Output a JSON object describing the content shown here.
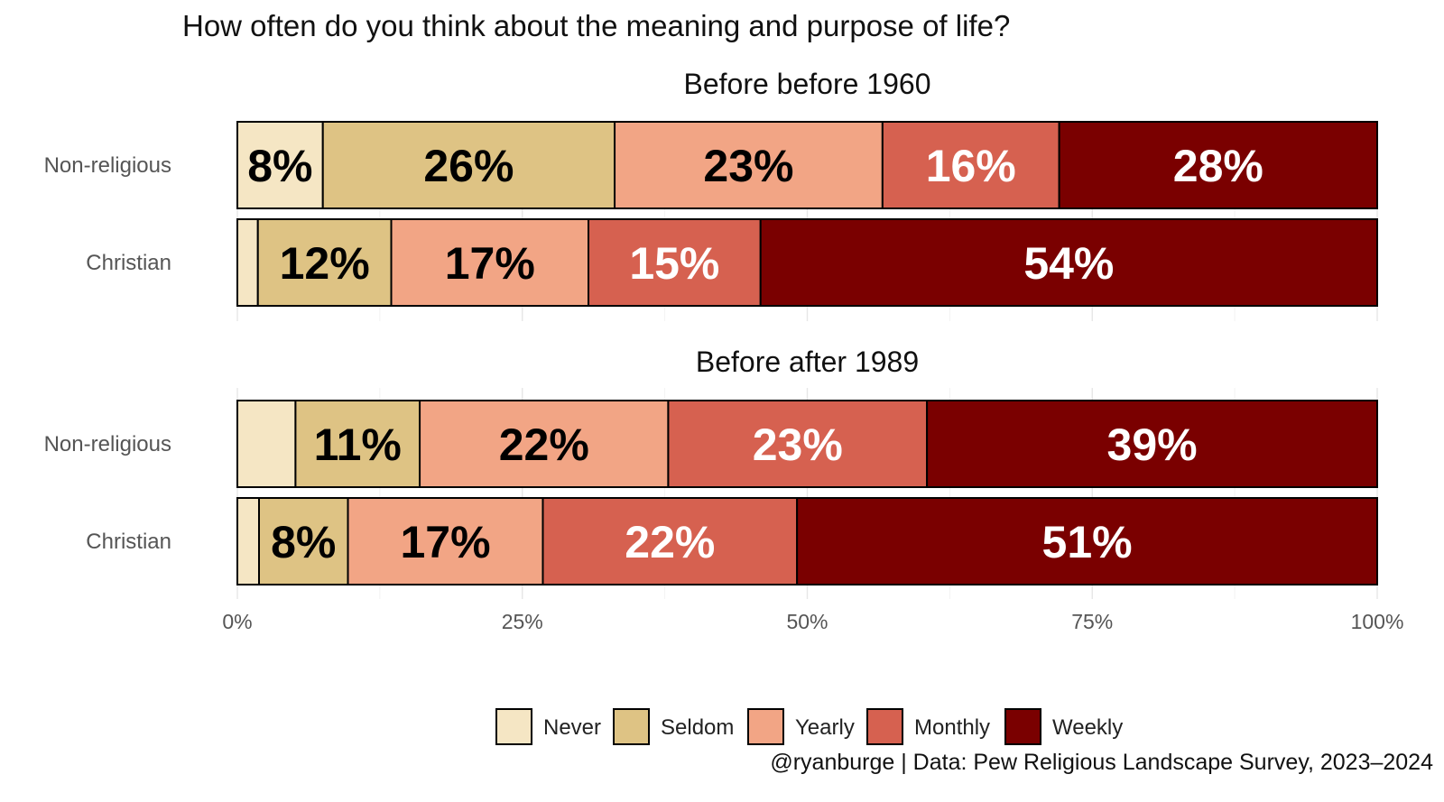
{
  "chart_data": {
    "type": "bar",
    "orientation": "horizontal",
    "stacked": true,
    "title": "How often do you think about the meaning and purpose of life?",
    "caption": "@ryanburge | Data: Pew Religious Landscape Survey, 2023–2024",
    "xlim": [
      0,
      100
    ],
    "x_ticks": [
      "0%",
      "25%",
      "50%",
      "75%",
      "100%"
    ],
    "x_tick_values": [
      0,
      25,
      50,
      75,
      100
    ],
    "legend_position": "bottom",
    "categories": [
      "Never",
      "Seldom",
      "Yearly",
      "Monthly",
      "Weekly"
    ],
    "colors": [
      "#F5E6C4",
      "#DEC384",
      "#F2A585",
      "#D66150",
      "#7A0000"
    ],
    "label_colors": [
      "#000000",
      "#000000",
      "#000000",
      "#ffffff",
      "#ffffff"
    ],
    "facets": [
      {
        "title": "Before before 1960",
        "rows": [
          {
            "group": "Non-religious",
            "values": [
              7.5,
              25.6,
              23.5,
              15.5,
              27.9
            ],
            "labels": [
              "8%",
              "26%",
              "23%",
              "16%",
              "28%"
            ]
          },
          {
            "group": "Christian",
            "values": [
              1.8,
              11.7,
              17.3,
              15.1,
              54.1
            ],
            "labels": [
              "",
              "12%",
              "17%",
              "15%",
              "54%"
            ]
          }
        ]
      },
      {
        "title": "Before after 1989",
        "rows": [
          {
            "group": "Non-religious",
            "values": [
              5.1,
              10.9,
              21.8,
              22.7,
              39.5
            ],
            "labels": [
              "",
              "11%",
              "22%",
              "23%",
              "39%"
            ]
          },
          {
            "group": "Christian",
            "values": [
              1.9,
              7.8,
              17.1,
              22.3,
              50.9
            ],
            "labels": [
              "",
              "8%",
              "17%",
              "22%",
              "51%"
            ]
          }
        ]
      }
    ]
  }
}
